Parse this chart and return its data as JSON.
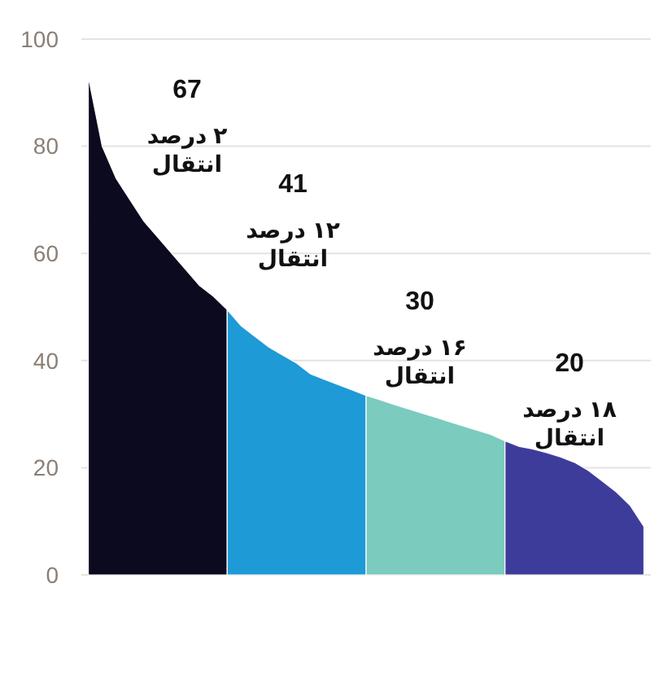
{
  "chart_data": {
    "type": "area",
    "categories": [
      null,
      null,
      null,
      null,
      null,
      null,
      null,
      null,
      null,
      null,
      null,
      null,
      null,
      null,
      null,
      null,
      null,
      null,
      null,
      null,
      null,
      null,
      null,
      null,
      null,
      null,
      null,
      null,
      null,
      null,
      null,
      null,
      null,
      null,
      null,
      null,
      null,
      null,
      null,
      null,
      null
    ],
    "series": [
      {
        "name": "۲ درصد انتقال",
        "color": "#0b0a1f",
        "values": [
          93,
          80,
          74,
          70,
          66,
          63,
          60,
          57,
          54,
          52,
          49.5,
          null,
          null,
          null,
          null,
          null,
          null,
          null,
          null,
          null,
          null,
          null,
          null,
          null,
          null,
          null,
          null,
          null,
          null,
          null,
          null,
          null,
          null,
          null,
          null,
          null,
          null,
          null,
          null,
          null,
          null
        ]
      },
      {
        "name": "۱۲ درصد انتقال",
        "color": "#1e9ad6",
        "values": [
          null,
          null,
          null,
          null,
          null,
          null,
          null,
          null,
          null,
          null,
          49.5,
          46.5,
          44.5,
          42.5,
          41,
          39.5,
          37.5,
          36.5,
          35.5,
          34.5,
          33.5,
          null,
          null,
          null,
          null,
          null,
          null,
          null,
          null,
          null,
          null,
          null,
          null,
          null,
          null,
          null,
          null,
          null,
          null,
          null,
          null
        ]
      },
      {
        "name": "۱۶ درصد انتقال",
        "color": "#7ccbbf",
        "values": [
          null,
          null,
          null,
          null,
          null,
          null,
          null,
          null,
          null,
          null,
          null,
          null,
          null,
          null,
          null,
          null,
          null,
          null,
          null,
          null,
          33.5,
          32.7,
          31.8,
          31,
          30.2,
          29.4,
          28.6,
          27.8,
          27,
          26.2,
          25,
          null,
          null,
          null,
          null,
          null,
          null,
          null,
          null,
          null,
          null
        ]
      },
      {
        "name": "۱۸ درصد انتقال",
        "color": "#3e3c9a",
        "values": [
          null,
          null,
          null,
          null,
          null,
          null,
          null,
          null,
          null,
          null,
          null,
          null,
          null,
          null,
          null,
          null,
          null,
          null,
          null,
          null,
          null,
          null,
          null,
          null,
          null,
          null,
          null,
          null,
          null,
          null,
          25,
          24,
          23.5,
          22.8,
          22,
          21,
          19.5,
          17.5,
          15.5,
          13,
          9
        ]
      }
    ],
    "annotations": [
      "67",
      "41",
      "30",
      "20"
    ],
    "ylim": [
      0,
      100
    ],
    "yticks": [
      0,
      20,
      40,
      60,
      80,
      100
    ],
    "grid": "y"
  }
}
